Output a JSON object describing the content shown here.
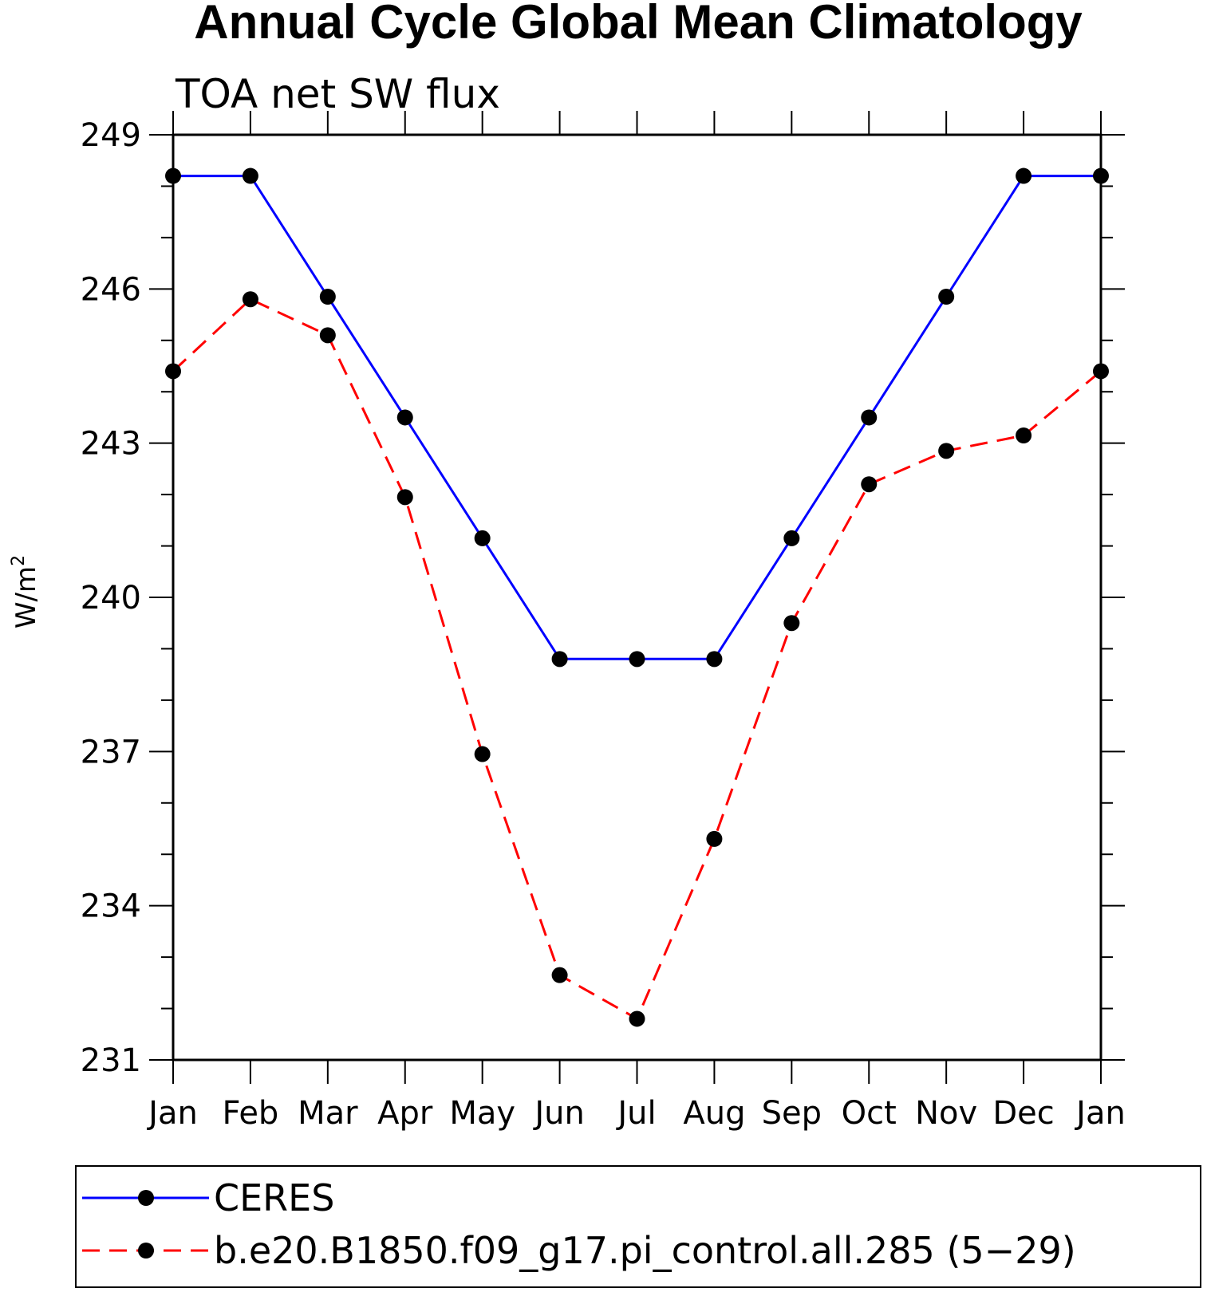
{
  "chart_data": {
    "type": "line",
    "title": "Annual Cycle Global Mean Climatology",
    "subtitle": "TOA net SW flux",
    "xlabel": "",
    "ylabel": "W/m",
    "ylabel_superscript": "2",
    "categories": [
      "Jan",
      "Feb",
      "Mar",
      "Apr",
      "May",
      "Jun",
      "Jul",
      "Aug",
      "Sep",
      "Oct",
      "Nov",
      "Dec",
      "Jan"
    ],
    "yticks": [
      "231",
      "234",
      "237",
      "240",
      "243",
      "246",
      "249"
    ],
    "ylim": [
      231,
      249
    ],
    "grid": false,
    "legend_position": "bottom",
    "series": [
      {
        "name": "CERES",
        "color": "#0000ff",
        "dash": "solid",
        "values": [
          248.2,
          248.2,
          245.85,
          243.5,
          241.15,
          238.8,
          238.8,
          238.8,
          241.15,
          243.5,
          245.85,
          248.2,
          248.2
        ]
      },
      {
        "name": "b.e20.B1850.f09_g17.pi_control.all.285 (5−29)",
        "color": "#ff0000",
        "dash": "dashed",
        "values": [
          244.4,
          245.8,
          245.1,
          241.95,
          236.95,
          232.65,
          231.8,
          235.3,
          239.5,
          242.2,
          242.85,
          243.15,
          244.4
        ]
      }
    ]
  }
}
